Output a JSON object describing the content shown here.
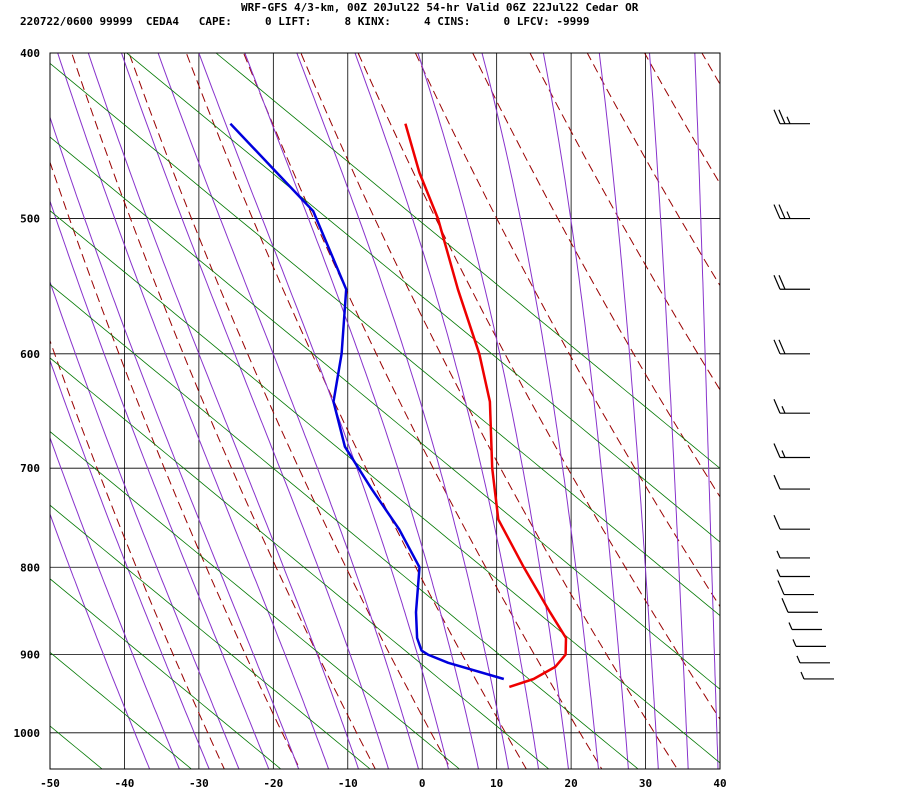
{
  "header": {
    "title": "WRF-GFS 4/3-km, 00Z 20Jul22 54-hr Valid 06Z 22Jul22 Cedar OR",
    "info": "220722/0600 99999  CEDA4   CAPE:     0 LIFT:     8 KINX:     4 CINS:     0 LFCV: -9999"
  },
  "colors": {
    "temperature": "#ee0000",
    "dewpoint": "#0000dd",
    "isotherm": "#000000",
    "dry_adiabat": "#990000",
    "moist_adiabat": "#8833cc",
    "mixing_ratio": "#007700",
    "wind_barb": "#000000"
  },
  "chart_data": {
    "type": "skew-t",
    "xlabel": "",
    "ylabel": "",
    "x_ticks": [
      -50,
      -40,
      -30,
      -20,
      -10,
      0,
      10,
      20,
      30,
      40
    ],
    "y_ticks": [
      400,
      500,
      600,
      700,
      800,
      900,
      1000
    ],
    "pressure_range_hpa": [
      400,
      1050
    ],
    "y_scale": "log",
    "grid": true,
    "series": [
      {
        "points": [
          [
            440,
            -23.5
          ],
          [
            470,
            -20
          ],
          [
            500,
            -16
          ],
          [
            550,
            -11
          ],
          [
            600,
            -6
          ],
          [
            640,
            -3
          ],
          [
            700,
            -0.5
          ],
          [
            750,
            2
          ],
          [
            800,
            7
          ],
          [
            850,
            12
          ],
          [
            880,
            15
          ],
          [
            900,
            15.5
          ],
          [
            915,
            14.5
          ],
          [
            930,
            12
          ],
          [
            940,
            9
          ]
        ]
      },
      {
        "points": [
          [
            440,
            -47
          ],
          [
            495,
            -33
          ],
          [
            550,
            -26
          ],
          [
            600,
            -24.5
          ],
          [
            640,
            -24
          ],
          [
            680,
            -21
          ],
          [
            720,
            -16
          ],
          [
            760,
            -11
          ],
          [
            800,
            -7
          ],
          [
            850,
            -6
          ],
          [
            880,
            -5
          ],
          [
            895,
            -4
          ],
          [
            900,
            -3
          ],
          [
            910,
            0
          ],
          [
            930,
            8
          ]
        ]
      }
    ],
    "wind_barbs": [
      {
        "p": 440,
        "speed_kt": 25
      },
      {
        "p": 500,
        "speed_kt": 25
      },
      {
        "p": 550,
        "speed_kt": 20
      },
      {
        "p": 600,
        "speed_kt": 20
      },
      {
        "p": 650,
        "speed_kt": 15
      },
      {
        "p": 690,
        "speed_kt": 15
      },
      {
        "p": 720,
        "speed_kt": 10
      },
      {
        "p": 760,
        "speed_kt": 10
      },
      {
        "p": 790,
        "speed_kt": 5
      },
      {
        "p": 810,
        "speed_kt": 5
      },
      {
        "p": 830,
        "speed_kt": 10
      },
      {
        "p": 850,
        "speed_kt": 10
      },
      {
        "p": 870,
        "speed_kt": 5
      },
      {
        "p": 890,
        "speed_kt": 5
      },
      {
        "p": 910,
        "speed_kt": 5
      },
      {
        "p": 930,
        "speed_kt": 5
      }
    ]
  }
}
